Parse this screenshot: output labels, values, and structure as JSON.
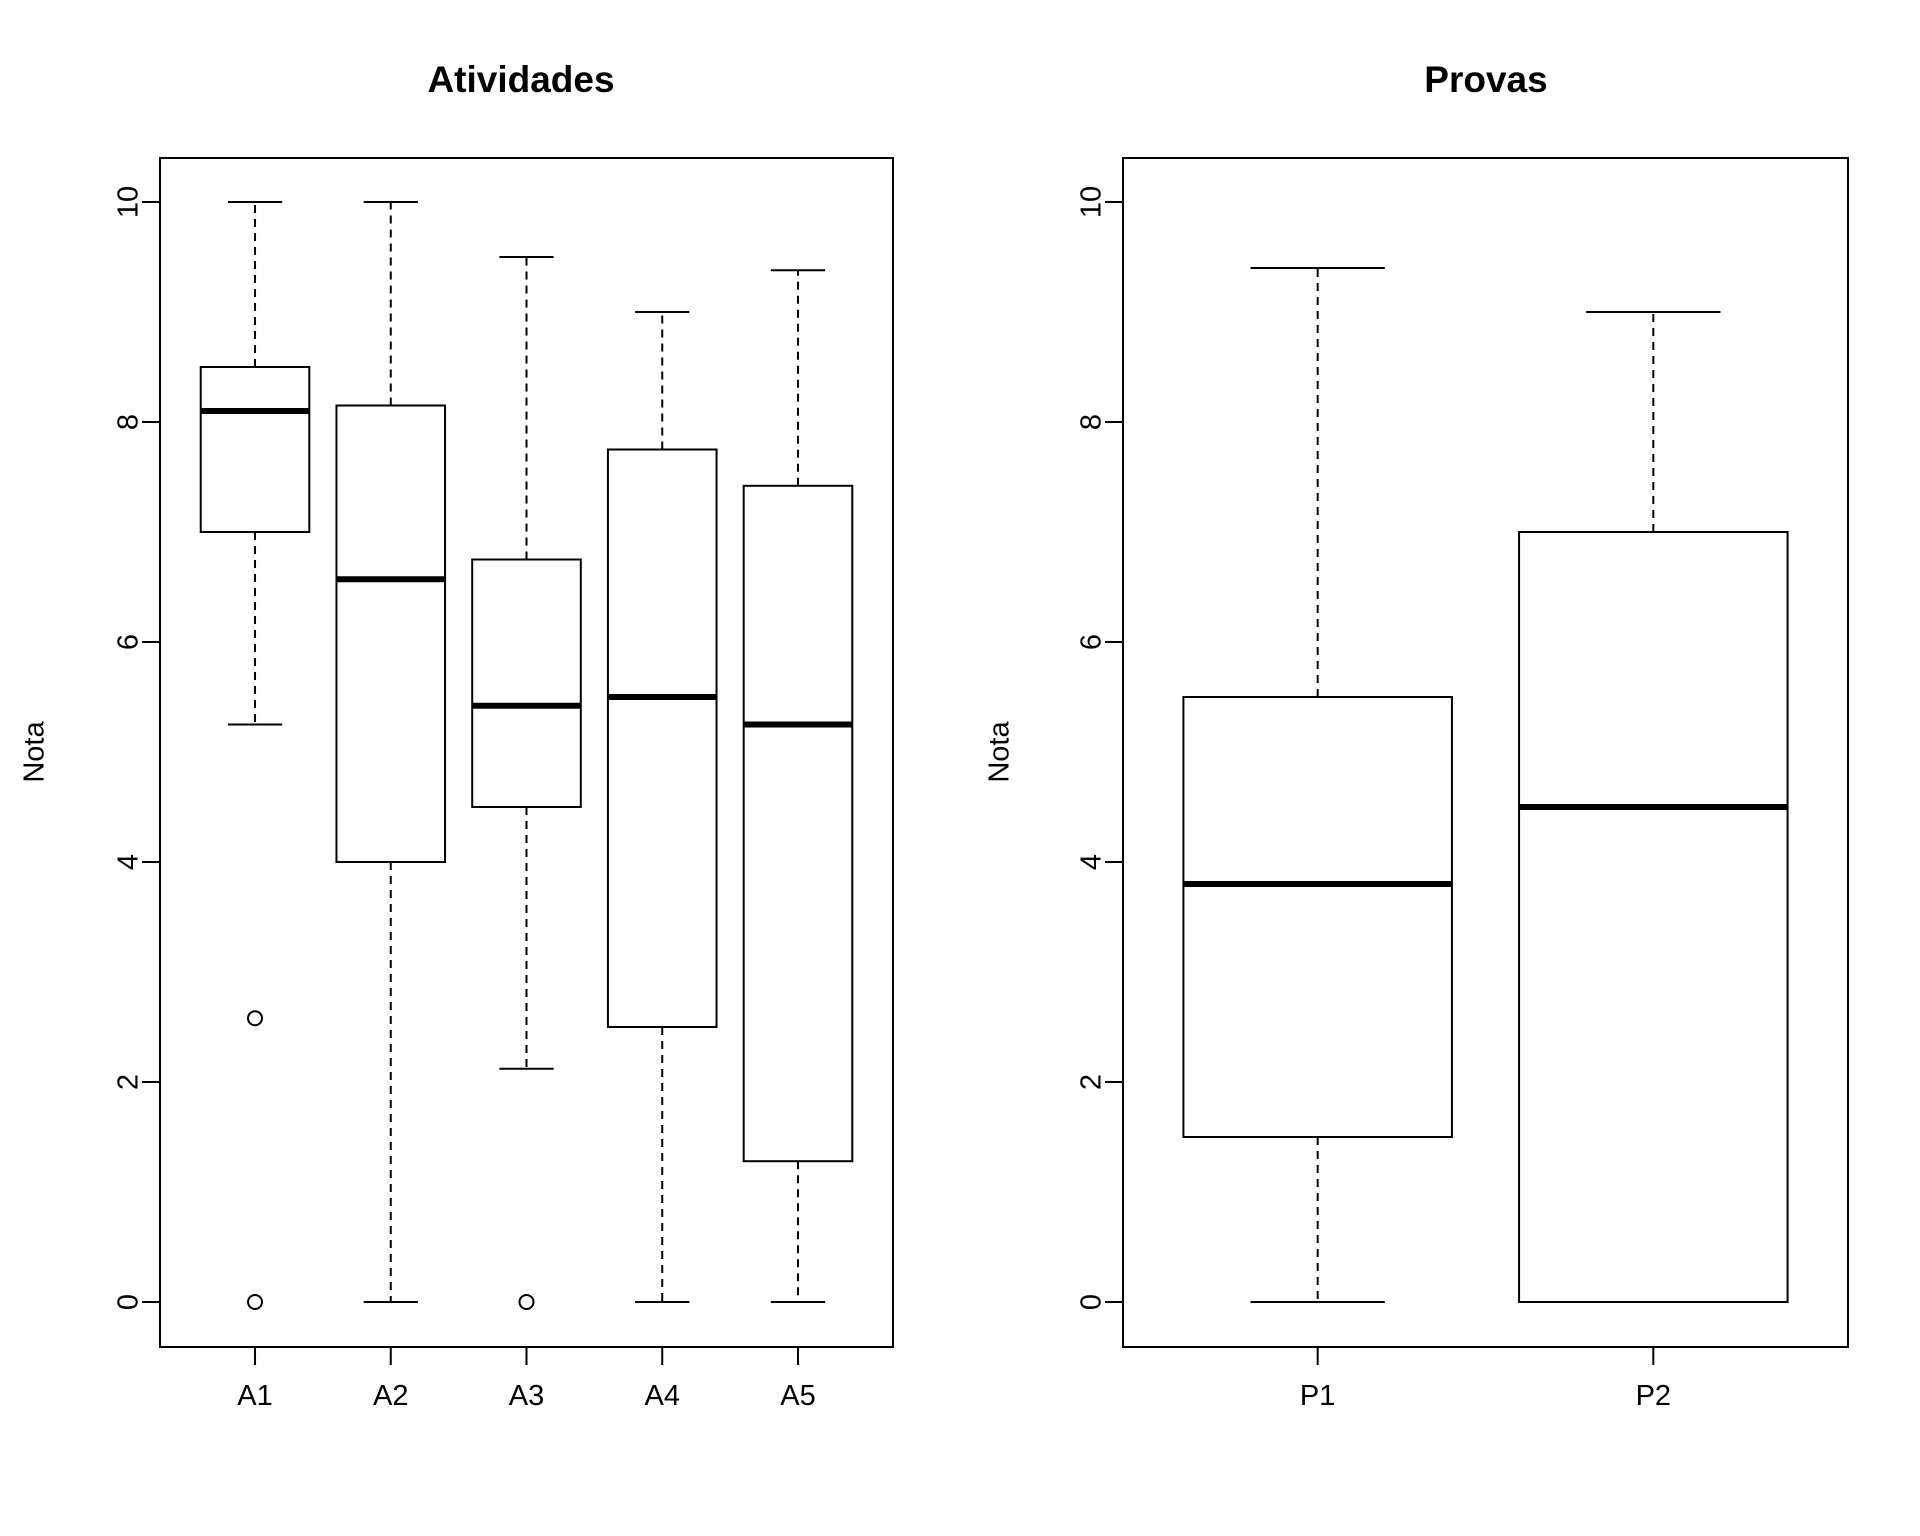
{
  "chart_data": [
    {
      "type": "boxplot",
      "title": "Atividades",
      "xlabel": "",
      "ylabel": "Nota",
      "ylim": [
        0,
        10
      ],
      "yticks": [
        "0",
        "2",
        "4",
        "6",
        "8",
        "10"
      ],
      "grid": false,
      "categories": [
        "A1",
        "A2",
        "A3",
        "A4",
        "A5"
      ],
      "boxes": [
        {
          "name": "A1",
          "whisker_low": 5.25,
          "q1": 7.0,
          "median": 8.1,
          "q3": 8.5,
          "whisker_high": 10.0,
          "outliers": [
            2.58,
            0.0
          ]
        },
        {
          "name": "A2",
          "whisker_low": 0.0,
          "q1": 4.0,
          "median": 6.57,
          "q3": 8.15,
          "whisker_high": 10.0,
          "outliers": []
        },
        {
          "name": "A3",
          "whisker_low": 2.12,
          "q1": 4.5,
          "median": 5.42,
          "q3": 6.75,
          "whisker_high": 9.5,
          "outliers": [
            0.0
          ]
        },
        {
          "name": "A4",
          "whisker_low": 0.0,
          "q1": 2.5,
          "median": 5.5,
          "q3": 7.75,
          "whisker_high": 9.0,
          "outliers": []
        },
        {
          "name": "A5",
          "whisker_low": 0.0,
          "q1": 1.28,
          "median": 5.25,
          "q3": 7.42,
          "whisker_high": 9.38,
          "outliers": []
        }
      ]
    },
    {
      "type": "boxplot",
      "title": "Provas",
      "xlabel": "",
      "ylabel": "Nota",
      "ylim": [
        0,
        10
      ],
      "yticks": [
        "0",
        "2",
        "4",
        "6",
        "8",
        "10"
      ],
      "grid": false,
      "categories": [
        "P1",
        "P2"
      ],
      "boxes": [
        {
          "name": "P1",
          "whisker_low": 0.0,
          "q1": 1.5,
          "median": 3.8,
          "q3": 5.5,
          "whisker_high": 9.4,
          "outliers": []
        },
        {
          "name": "P2",
          "whisker_low": 0.0,
          "q1": 0.0,
          "median": 4.5,
          "q3": 7.0,
          "whisker_high": 9.0,
          "outliers": []
        }
      ]
    }
  ]
}
